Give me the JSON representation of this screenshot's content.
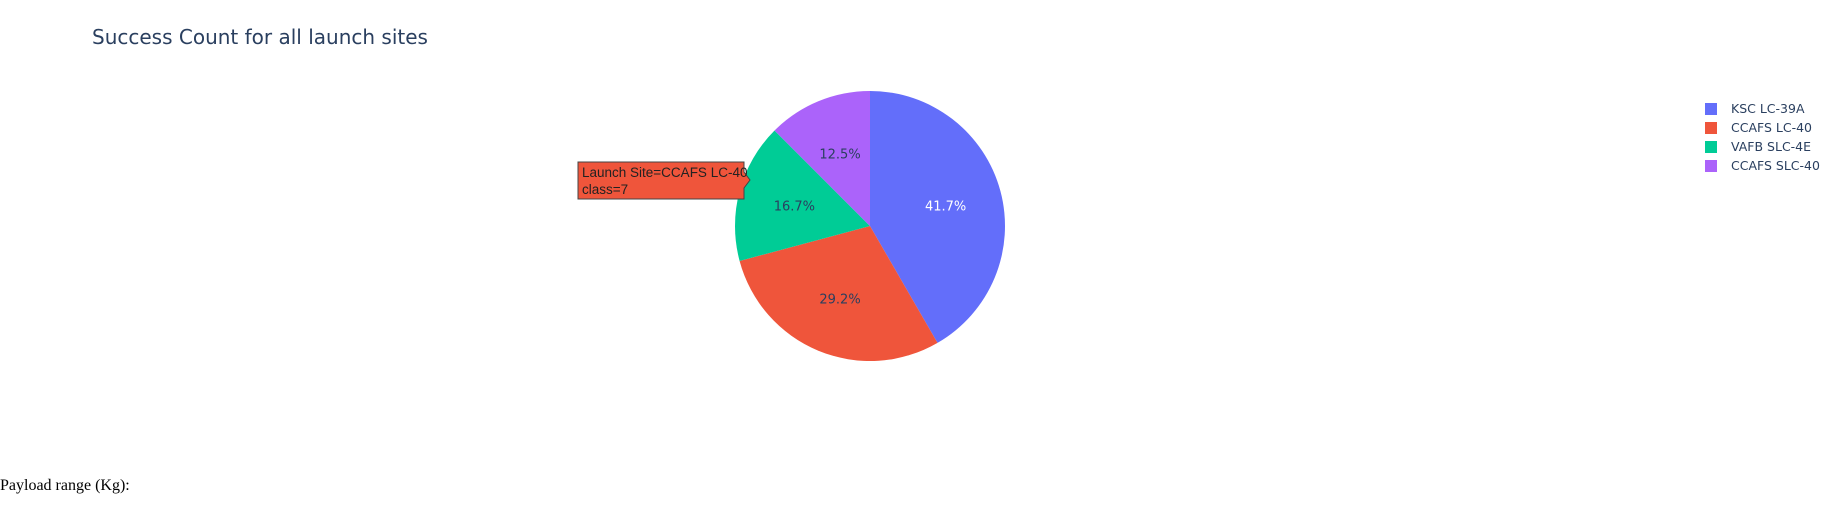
{
  "chart_data": {
    "type": "pie",
    "title": "Success Count for all launch sites",
    "labels": [
      "KSC LC-39A",
      "CCAFS LC-40",
      "VAFB SLC-4E",
      "CCAFS SLC-40"
    ],
    "values": [
      10,
      7,
      4,
      3
    ],
    "percent_labels": [
      "41.7%",
      "29.2%",
      "16.7%",
      "12.5%"
    ],
    "colors": [
      "#636efa",
      "#ef553b",
      "#00cc96",
      "#ab63fa"
    ],
    "legend_position": "top-right",
    "hover": {
      "line1": "Launch Site=CCAFS LC-40",
      "line2": "class=7"
    }
  },
  "modebar": {
    "icons": [
      "camera-icon",
      "plotly-logo-icon"
    ]
  },
  "controls": {
    "payload_label": "Payload range (Kg):"
  }
}
